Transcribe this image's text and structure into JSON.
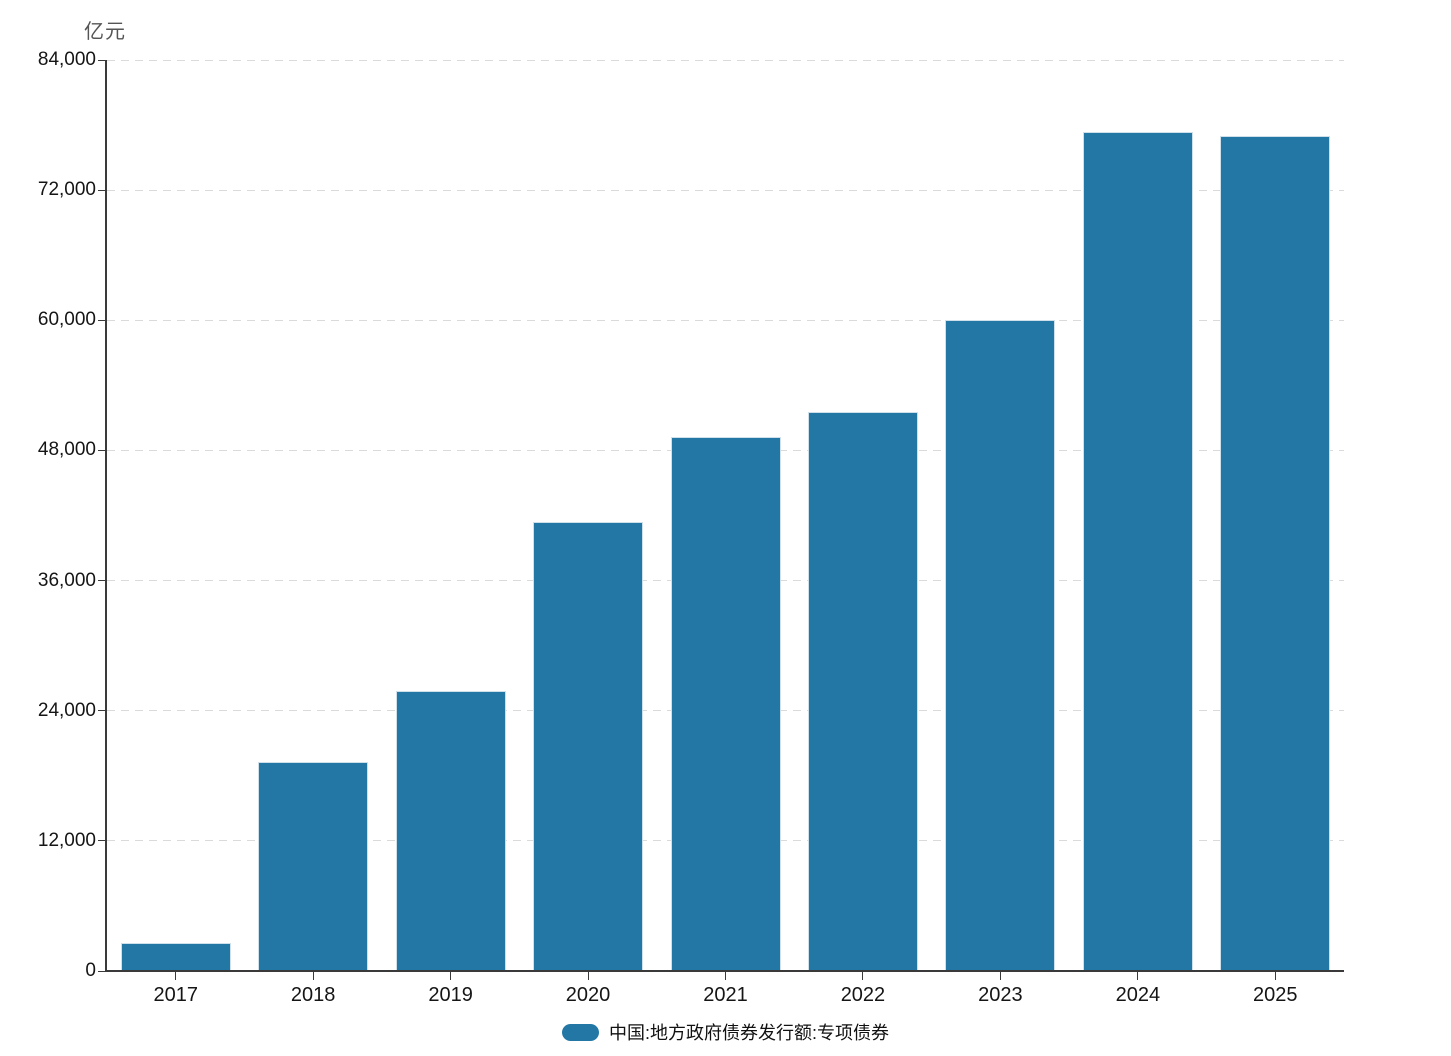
{
  "chart_data": {
    "type": "bar",
    "title": "",
    "unit_label": "亿元",
    "categories": [
      "2017",
      "2018",
      "2019",
      "2020",
      "2021",
      "2022",
      "2023",
      "2024",
      "2025"
    ],
    "series": [
      {
        "name": "中国:地方政府债券发行额:专项债券",
        "values": [
          2600,
          19300,
          25800,
          41400,
          49200,
          51500,
          60000,
          77400,
          77000
        ]
      }
    ],
    "xlabel": "",
    "ylabel": "亿元",
    "ylim": [
      0,
      84000
    ],
    "y_tick_step": 12000,
    "y_tick_labels": [
      "0",
      "12,000",
      "24,000",
      "36,000",
      "48,000",
      "60,000",
      "72,000",
      "84,000"
    ],
    "grid": "horizontal-dashed",
    "legend_position": "bottom-center",
    "bar_color": "#2377A5"
  },
  "legend": {
    "label": "中国:地方政府债券发行额:专项债券",
    "swatch_color": "#2377A5"
  },
  "colors": {
    "background": "#ffffff",
    "bar": "#2377A5",
    "bar_border": "#cfe0ea",
    "grid_line": "#dadada",
    "axis_line": "#3a3a3a",
    "tick_label": "#151515",
    "unit_label": "#555555",
    "legend_text": "#111111"
  }
}
